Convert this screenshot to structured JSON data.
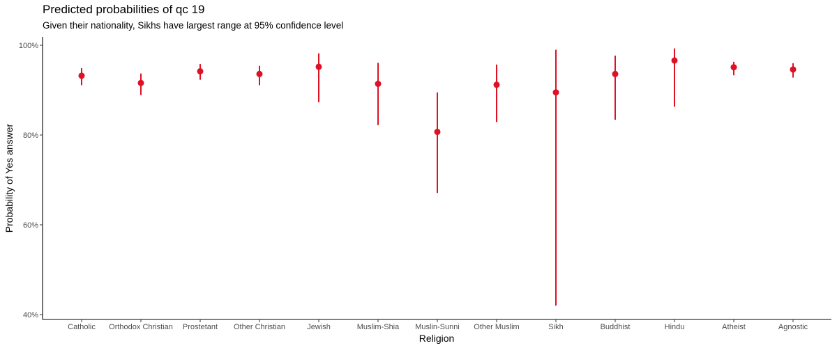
{
  "chart_data": {
    "type": "scatter",
    "title": "Predicted probabilities of qc 19",
    "subtitle": "Given their nationality, Sikhs have largest range at 95% confidence level",
    "xlabel": "Religion",
    "ylabel": "Probability of Yes answer",
    "ylim": [
      0.4,
      1.0
    ],
    "yticks": [
      0.4,
      0.6,
      0.8,
      1.0
    ],
    "ytick_labels": [
      "40%",
      "60%",
      "80%",
      "100%"
    ],
    "grid": false,
    "color": "#DE1125",
    "categories": [
      "Catholic",
      "Orthodox Christian",
      "Prostetant",
      "Other Christian",
      "Jewish",
      "Muslim-Shia",
      "Muslin-Sunni",
      "Other Muslim",
      "Sikh",
      "Buddhist",
      "Hindu",
      "Atheist",
      "Agnostic"
    ],
    "values": [
      0.932,
      0.916,
      0.942,
      0.936,
      0.952,
      0.914,
      0.807,
      0.912,
      0.895,
      0.936,
      0.966,
      0.951,
      0.946
    ],
    "lower": [
      0.911,
      0.889,
      0.923,
      0.911,
      0.873,
      0.822,
      0.671,
      0.829,
      0.42,
      0.834,
      0.863,
      0.933,
      0.928
    ],
    "upper": [
      0.949,
      0.937,
      0.958,
      0.954,
      0.982,
      0.961,
      0.895,
      0.957,
      0.99,
      0.977,
      0.993,
      0.963,
      0.96
    ]
  }
}
